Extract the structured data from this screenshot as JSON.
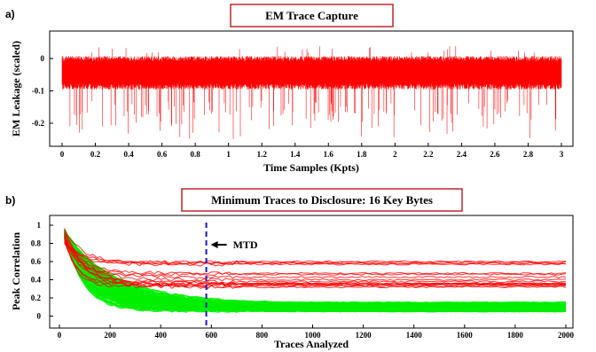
{
  "chart_data": [
    {
      "panel_label": "a)",
      "type": "line",
      "title": "EM Trace Capture",
      "xlabel": "Time Samples (Kpts)",
      "ylabel": "EM Leakage (scaled)",
      "xlim": [
        0,
        3
      ],
      "ylim": [
        -0.25,
        0.05
      ],
      "x_ticks": [
        0,
        0.2,
        0.4,
        0.6,
        0.8,
        1,
        1.2,
        1.4,
        1.6,
        1.8,
        2,
        2.2,
        2.4,
        2.6,
        2.8,
        3
      ],
      "x_tick_labels": [
        "0",
        "0.2",
        "0.4",
        "0.6",
        "0.8",
        "1",
        "1.2",
        "1.4",
        "1.6",
        "1.8",
        "2",
        "2.2",
        "2.4",
        "2.6",
        "2.8",
        "3"
      ],
      "y_ticks": [
        0,
        -0.1,
        -0.2
      ],
      "y_tick_labels": [
        "0",
        "-0.1",
        "-0.2"
      ],
      "series": [
        {
          "color": "#ff0000",
          "band_upper": 0.005,
          "band_lower": -0.085,
          "spike_min": -0.25,
          "spike_max": 0.04
        }
      ],
      "grid": false
    },
    {
      "panel_label": "b)",
      "type": "line",
      "title": "Minimum Traces to Disclosure: 16 Key Bytes",
      "xlabel": "Traces Analyzed",
      "ylabel": "Peak Correlation",
      "xlim": [
        0,
        2000
      ],
      "ylim": [
        0,
        1
      ],
      "x_ticks": [
        0,
        200,
        400,
        600,
        800,
        1000,
        1200,
        1400,
        1600,
        1800,
        2000
      ],
      "x_tick_labels": [
        "0",
        "200",
        "400",
        "600",
        "800",
        "1000",
        "1200",
        "1400",
        "1600",
        "1800",
        "2000"
      ],
      "y_ticks": [
        0,
        0.2,
        0.4,
        0.6,
        0.8,
        1
      ],
      "y_tick_labels": [
        "0",
        "0.2",
        "0.4",
        "0.6",
        "0.8",
        "1"
      ],
      "red_final_values": [
        0.6,
        0.59,
        0.58,
        0.47,
        0.46,
        0.4,
        0.38,
        0.36,
        0.35,
        0.35,
        0.34,
        0.33,
        0.32,
        0.36,
        0.43,
        0.57
      ],
      "green_band": {
        "start": 0.95,
        "upper_end": 0.15,
        "lower_end": 0.05
      },
      "colors": {
        "correct_key": "#ff0000",
        "wrong_keys": "#00ee00"
      },
      "annotation": {
        "text": "MTD",
        "x": 580
      },
      "grid": false
    }
  ]
}
